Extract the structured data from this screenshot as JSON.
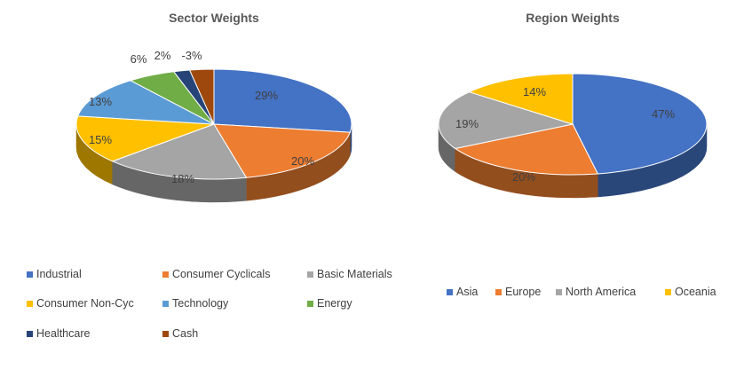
{
  "chart_data": [
    {
      "type": "pie",
      "title": "Sector Weights",
      "categories": [
        "Industrial",
        "Consumer Cyclicals",
        "Basic Materials",
        "Consumer Non-Cyc",
        "Technology",
        "Energy",
        "Healthcare",
        "Cash"
      ],
      "values": [
        29,
        20,
        18,
        15,
        13,
        6,
        2,
        -3
      ],
      "labels": [
        "29%",
        "20%",
        "18%",
        "15%",
        "13%",
        "6%",
        "2%",
        "-3%"
      ],
      "colors": [
        "#4472C4",
        "#ED7D31",
        "#A5A5A5",
        "#FFC000",
        "#5B9BD5",
        "#70AD47",
        "#264478",
        "#9E480E"
      ],
      "legend_position": "bottom"
    },
    {
      "type": "pie",
      "title": "Region Weights",
      "categories": [
        "Asia",
        "Europe",
        "North America",
        "Oceania"
      ],
      "values": [
        47,
        20,
        19,
        14
      ],
      "labels": [
        "47%",
        "20%",
        "19%",
        "14%"
      ],
      "colors": [
        "#4472C4",
        "#ED7D31",
        "#A5A5A5",
        "#FFC000"
      ],
      "legend_position": "bottom"
    }
  ]
}
